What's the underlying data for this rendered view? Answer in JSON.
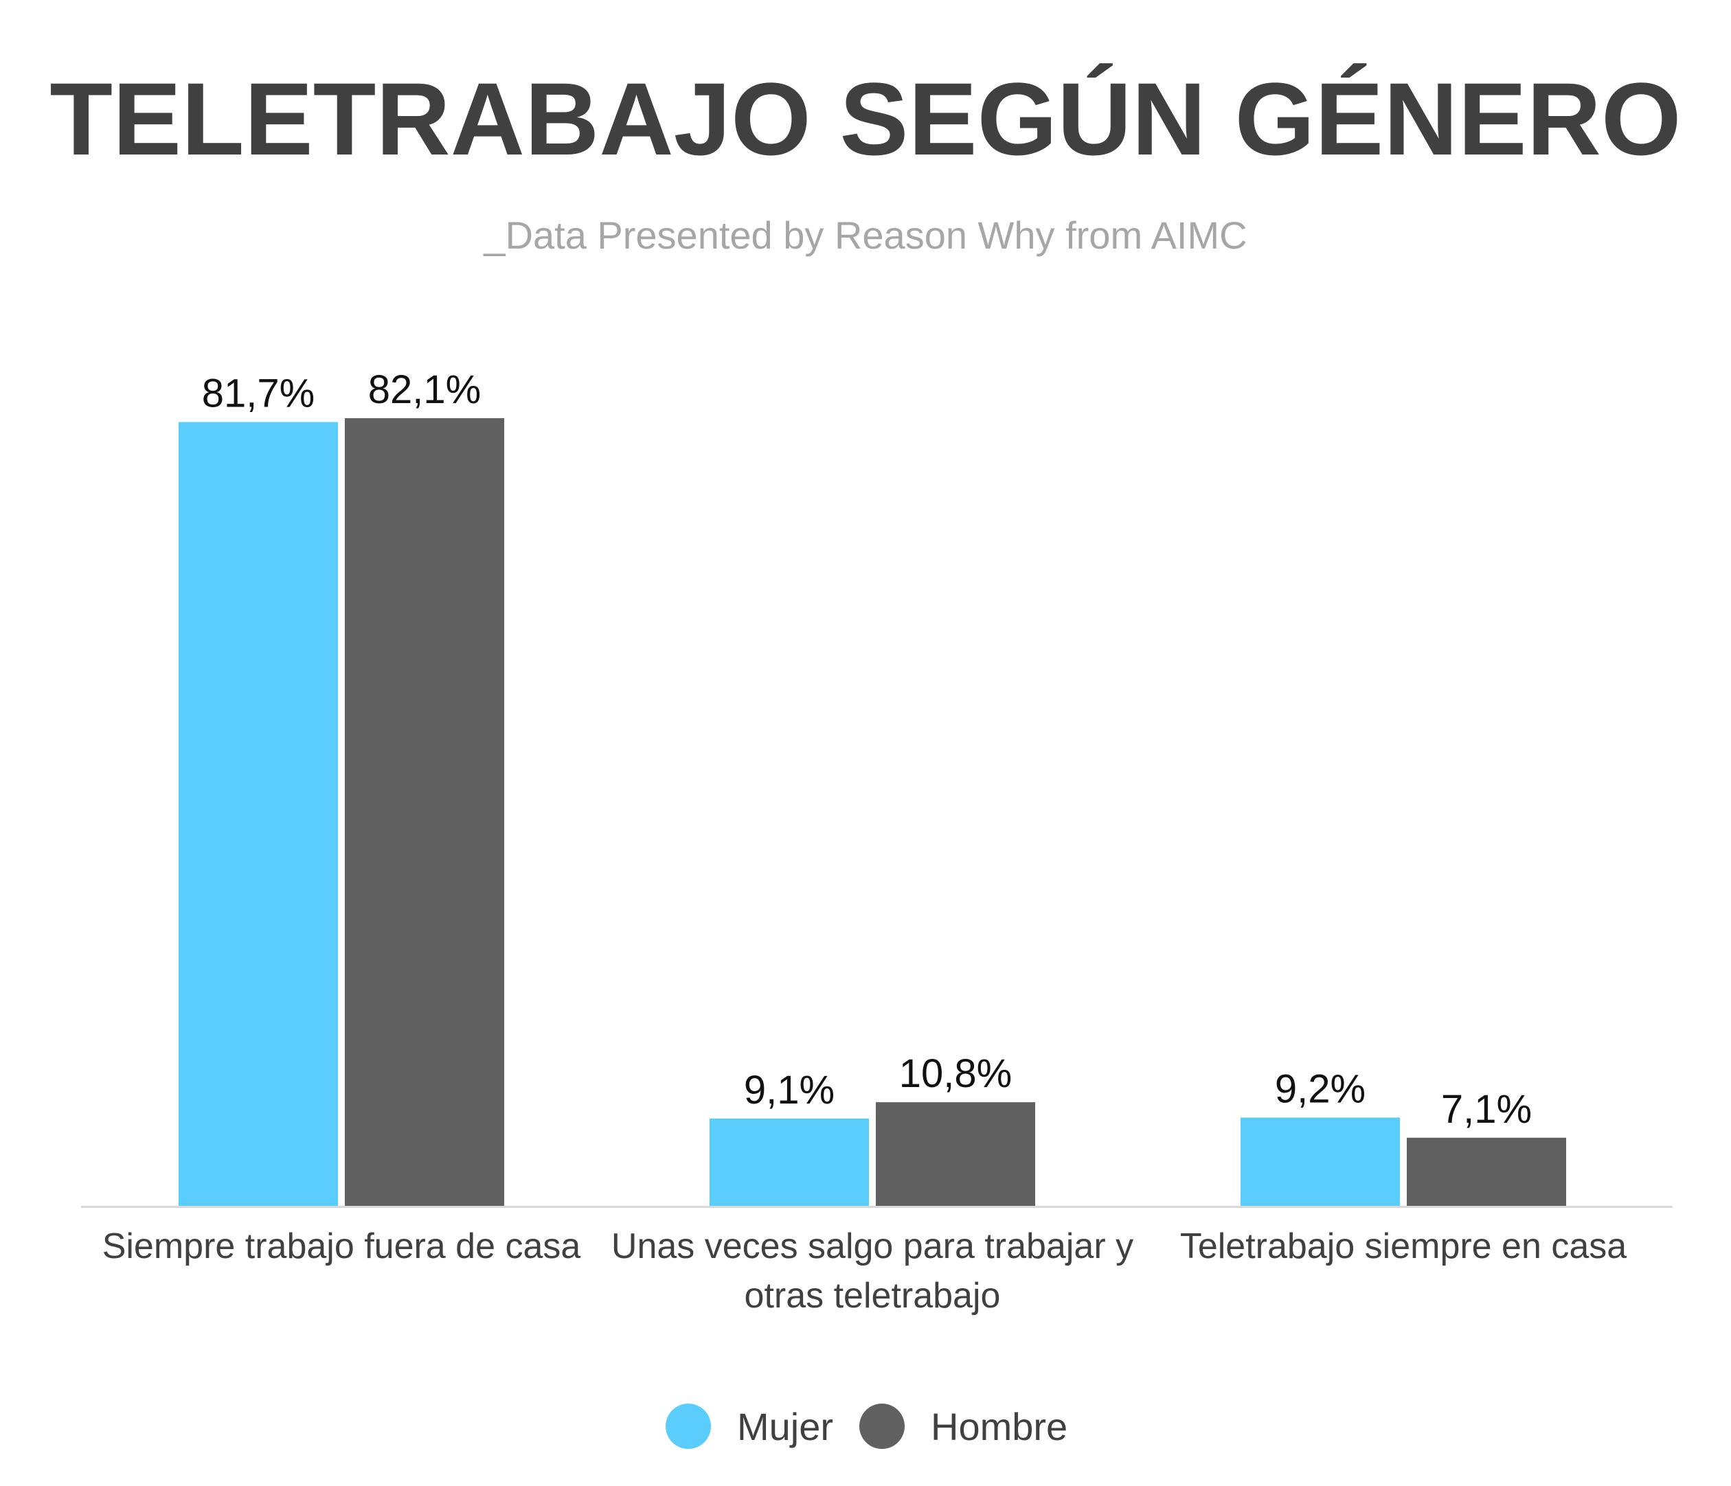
{
  "chart_data": {
    "type": "bar",
    "title": "TELETRABAJO SEGÚN GÉNERO",
    "subtitle": "_Data Presented by Reason Why from AIMC",
    "categories": [
      [
        "Siempre trabajo fuera de casa"
      ],
      [
        "Unas veces salgo para trabajar y",
        "otras teletrabajo"
      ],
      [
        "Teletrabajo siempre en casa"
      ]
    ],
    "series": [
      {
        "name": "Mujer",
        "color": "#5bcdfd",
        "values": [
          81.7,
          9.1,
          9.2
        ],
        "labels": [
          "81,7%",
          "9,1%",
          "9,2%"
        ]
      },
      {
        "name": "Hombre",
        "color": "#606060",
        "values": [
          82.1,
          10.8,
          7.1
        ],
        "labels": [
          "82,1%",
          "10,8%",
          "7,1%"
        ]
      }
    ],
    "ylim": [
      0,
      82.1
    ],
    "xlabel": "",
    "ylabel": "",
    "grid": false,
    "legend_position": "bottom-center",
    "axis_line_color": "#d9d9d9"
  }
}
